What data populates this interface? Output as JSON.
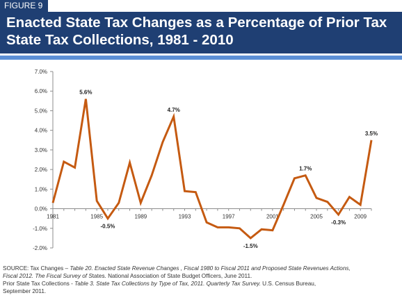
{
  "figure_label": "FIGURE 9",
  "title_line1": "Enacted State Tax Changes as a Percentage of Prior Tax",
  "title_line2": "State Tax Collections, 1981 - 2010",
  "colors": {
    "banner": "#1f3f73",
    "rule": "#5b8fd6",
    "line": "#c55a11"
  },
  "chart_data": {
    "type": "line",
    "x": [
      1981,
      1982,
      1983,
      1984,
      1985,
      1986,
      1987,
      1988,
      1989,
      1990,
      1991,
      1992,
      1993,
      1994,
      1995,
      1996,
      1997,
      1998,
      1999,
      2000,
      2001,
      2002,
      2003,
      2004,
      2005,
      2006,
      2007,
      2008,
      2009,
      2010
    ],
    "series": [
      {
        "values": [
          0.3,
          2.4,
          2.1,
          5.6,
          0.4,
          -0.5,
          0.3,
          2.35,
          0.3,
          1.7,
          3.4,
          4.7,
          0.9,
          0.85,
          -0.7,
          -0.95,
          -0.95,
          -1.0,
          -1.5,
          -1.05,
          -1.1,
          0.2,
          1.55,
          1.7,
          0.55,
          0.35,
          -0.3,
          0.6,
          0.2,
          3.5
        ]
      }
    ],
    "ylim": [
      -2.0,
      7.0
    ],
    "y_ticks": [
      "7.0%",
      "6.0%",
      "5.0%",
      "4.0%",
      "3.0%",
      "2.0%",
      "1.0%",
      "0.0%",
      "-1.0%",
      "-2.0%"
    ],
    "x_tick_labels": [
      "1981",
      "1985",
      "1989",
      "1993",
      "1997",
      "2001",
      "2005",
      "2009"
    ],
    "data_labels": [
      {
        "year": 1984,
        "text": "5.6%"
      },
      {
        "year": 1986,
        "text": "-0.5%"
      },
      {
        "year": 1992,
        "text": "4.7%"
      },
      {
        "year": 1999,
        "text": "-1.5%"
      },
      {
        "year": 2004,
        "text": "1.7%"
      },
      {
        "year": 2007,
        "text": "-0.3%"
      },
      {
        "year": 2010,
        "text": "3.5%"
      }
    ],
    "grid": false
  },
  "source": {
    "l1_a": "SOURCE: Tax Changes – ",
    "l1_b": "Table 20. Enacted State Revenue Changes , Fiscal 1980 to Fiscal 2011 and Proposed State Revenues Actions,",
    "l2_a": "Fiscal 2012.  The Fiscal Survey of S",
    "l2_b": "tates.  National Association of State Budget Officers, June 2011.",
    "l3_a": "Prior State Tax Collections - ",
    "l3_b": "Table 3. State Tax Collections by Type of Tax, 2011.  Quarterly Tax Survey.",
    "l3_c": "  U.S. Census Bureau,",
    "l4": "September 2011."
  }
}
